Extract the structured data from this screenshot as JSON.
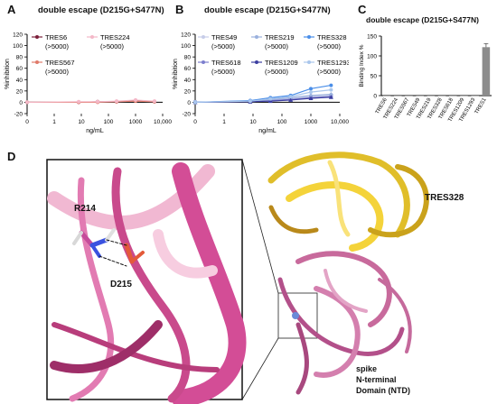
{
  "panels": {
    "A": {
      "letter": "A",
      "title": "double escape (D215G+S477N)"
    },
    "B": {
      "letter": "B",
      "title": "double escape (D215G+S477N)"
    },
    "C": {
      "letter": "C",
      "title": "double escape (D215G+S477N)"
    },
    "D": {
      "letter": "D"
    }
  },
  "structure_labels": {
    "residue1": "R214",
    "residue2": "D215",
    "antibody": "TRES328",
    "domain_line1": "spike",
    "domain_line2": "N-terminal",
    "domain_line3": "Domain (NTD)"
  },
  "chart_data": [
    {
      "id": "A",
      "type": "line",
      "title": "double escape (D215G+S477N)",
      "xlabel": "ng/mL",
      "ylabel": "%inhibition",
      "x_scale": "log",
      "x_ticks": [
        "0",
        "1",
        "10",
        "100",
        "1000",
        "10,000"
      ],
      "y_ticks": [
        "-20",
        "0",
        "20",
        "40",
        "60",
        "80",
        "100",
        "120"
      ],
      "ylim": [
        -20,
        120
      ],
      "x": [
        0.1,
        8,
        40,
        200,
        1000,
        5000
      ],
      "series": [
        {
          "name": "TRES6",
          "note": "(>5000)",
          "color": "#7b1f3a",
          "marker": "circle",
          "values": [
            0,
            0,
            1,
            1,
            3,
            1
          ]
        },
        {
          "name": "TRES567",
          "note": "(>5000)",
          "color": "#e07a6a",
          "marker": "circle",
          "values": [
            0,
            0,
            0,
            1,
            2,
            1
          ]
        },
        {
          "name": "TRES224",
          "note": "(>5000)",
          "color": "#f4b8c8",
          "marker": "circle",
          "values": [
            0,
            1,
            1,
            2,
            4,
            2
          ]
        }
      ]
    },
    {
      "id": "B",
      "type": "line",
      "title": "double escape (D215G+S477N)",
      "xlabel": "ng/mL",
      "ylabel": "%inhibition",
      "x_scale": "log",
      "x_ticks": [
        "0",
        "1",
        "10",
        "100",
        "1000",
        "10,000"
      ],
      "y_ticks": [
        "-20",
        "0",
        "20",
        "40",
        "60",
        "80",
        "100",
        "120"
      ],
      "ylim": [
        -20,
        120
      ],
      "x": [
        0.1,
        8,
        40,
        200,
        1000,
        5000
      ],
      "series": [
        {
          "name": "TRES49",
          "note": "(>5000)",
          "color": "#c7cde8",
          "marker": "circle",
          "values": [
            0,
            2,
            4,
            6,
            10,
            12
          ]
        },
        {
          "name": "TRES618",
          "note": "(>5000)",
          "color": "#7d7fce",
          "marker": "square",
          "values": [
            0,
            1,
            3,
            5,
            8,
            10
          ]
        },
        {
          "name": "TRES219",
          "note": "(>5000)",
          "color": "#9ab0dd",
          "marker": "diamond",
          "values": [
            0,
            2,
            5,
            8,
            12,
            14
          ]
        },
        {
          "name": "TRES1209",
          "note": "(>5000)",
          "color": "#3c3ea0",
          "marker": "triangle",
          "values": [
            0,
            1,
            2,
            4,
            7,
            9
          ]
        },
        {
          "name": "TRES328",
          "note": "(>5000)",
          "color": "#4a8ee8",
          "marker": "circle",
          "values": [
            0,
            3,
            8,
            12,
            24,
            30
          ]
        },
        {
          "name": "TRES1293",
          "note": "(>5000)",
          "color": "#a9c6ec",
          "marker": "circle",
          "values": [
            0,
            2,
            6,
            10,
            18,
            22
          ]
        }
      ]
    },
    {
      "id": "C",
      "type": "bar",
      "title": "double escape (D215G+S477N)",
      "ylabel": "Binding Index %",
      "y_ticks": [
        "0",
        "50",
        "100",
        "150"
      ],
      "ylim": [
        0,
        150
      ],
      "categories": [
        "TRES6",
        "TRES224",
        "TRES567",
        "TRES49",
        "TRES219",
        "TRES328",
        "TRES618",
        "TRES1209",
        "TRES1293",
        "TRES1"
      ],
      "values": [
        0,
        0,
        0,
        0,
        0,
        0,
        0,
        0,
        0,
        122
      ],
      "bar_color": "#8c8c8c"
    }
  ]
}
